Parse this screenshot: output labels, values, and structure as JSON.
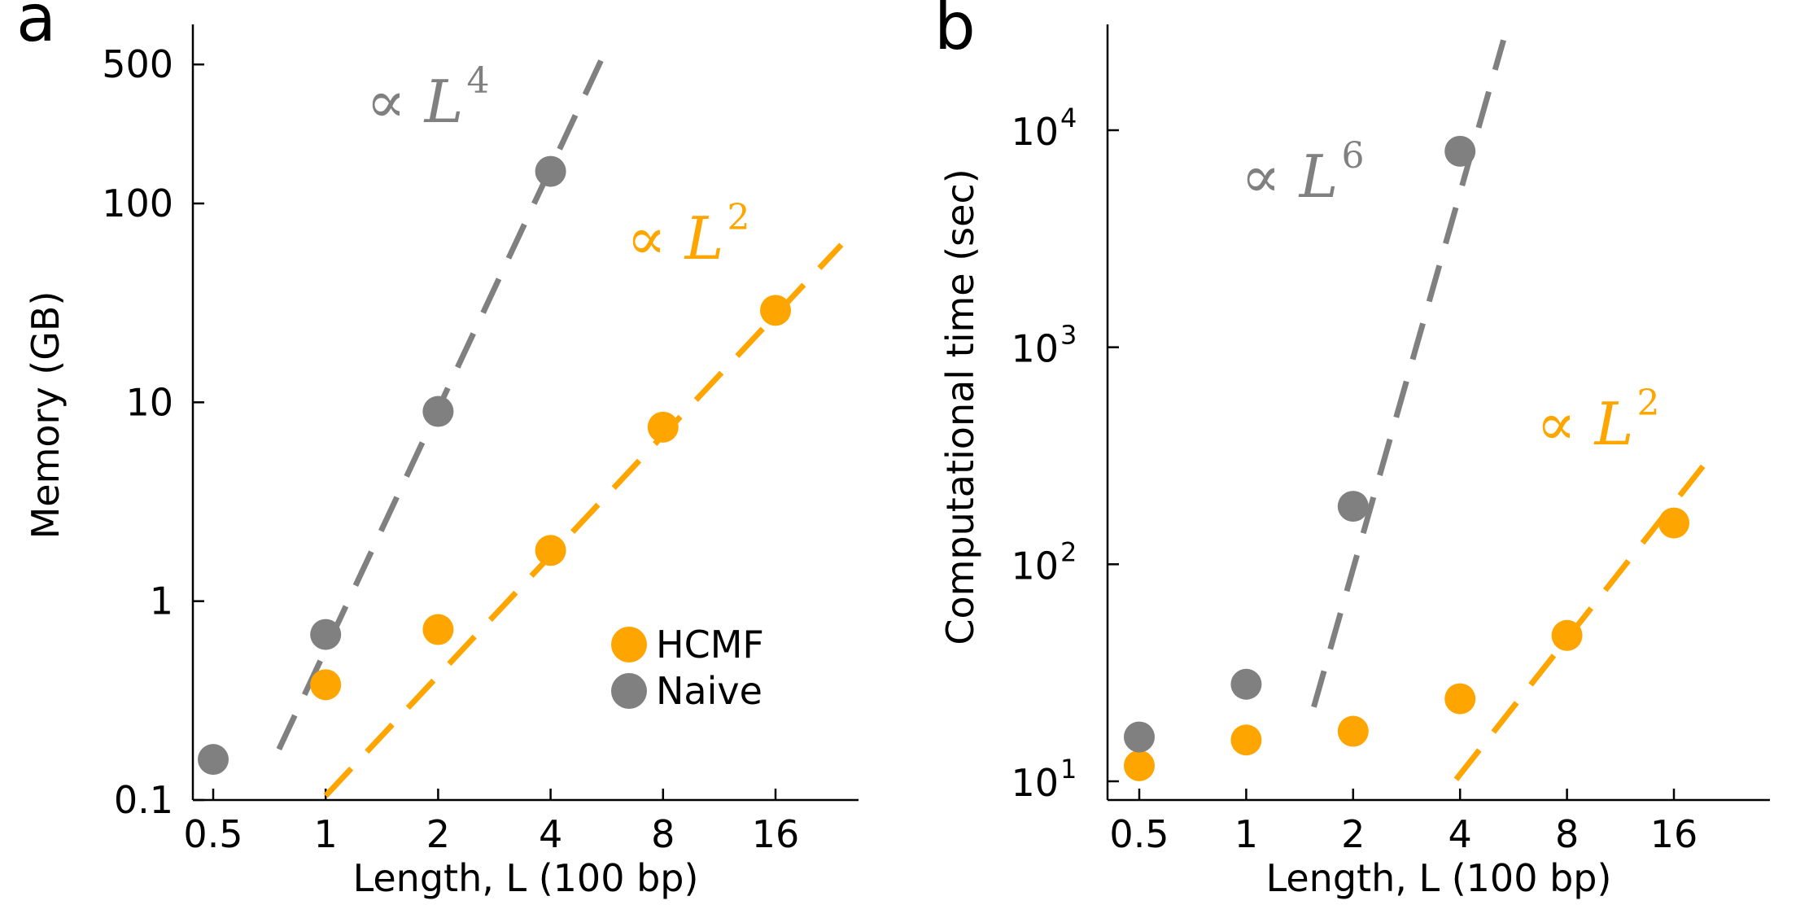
{
  "colors": {
    "hcmf": "#FFA500",
    "naive": "#808080",
    "axis": "#000000"
  },
  "chart_data": [
    {
      "panel": "a",
      "type": "scatter",
      "xscale": "log2",
      "yscale": "log10",
      "xlabel": "Length, L (100 bp)",
      "ylabel": "Memory (GB)",
      "xlim": [
        0.43,
        28
      ],
      "ylim": [
        0.1,
        1000
      ],
      "xticks": [
        0.5,
        1,
        2,
        4,
        8,
        16
      ],
      "xtick_labels": [
        "0.5",
        "1",
        "2",
        "4",
        "8",
        "16"
      ],
      "yticks": [
        0.1,
        1,
        10,
        100,
        500
      ],
      "ytick_labels": [
        "0.1",
        "1",
        "10",
        "100",
        "500"
      ],
      "legend": {
        "placement": "lower-right",
        "entries": [
          "HCMF",
          "Naive"
        ]
      },
      "series": [
        {
          "name": "HCMF",
          "color": "#FFA500",
          "x": [
            1,
            2,
            4,
            8,
            16
          ],
          "y": [
            0.38,
            0.72,
            1.8,
            7.5,
            29
          ]
        },
        {
          "name": "Naive",
          "color": "#808080",
          "x": [
            0.5,
            1,
            2,
            4
          ],
          "y": [
            0.16,
            0.68,
            9,
            145
          ]
        }
      ],
      "fits": [
        {
          "label": "∝ L",
          "exponent": "4",
          "color": "#808080",
          "x": [
            0.75,
            5.5
          ],
          "y": [
            0.18,
            540
          ]
        },
        {
          "label": "∝ L",
          "exponent": "2",
          "color": "#FFA500",
          "x": [
            1,
            24
          ],
          "y": [
            0.105,
            62
          ]
        }
      ]
    },
    {
      "panel": "b",
      "type": "scatter",
      "xscale": "log2",
      "yscale": "log10",
      "xlabel": "Length, L (100 bp)",
      "ylabel": "Computational time (sec)",
      "xlim": [
        0.37,
        28
      ],
      "ylim": [
        8,
        30000
      ],
      "xticks": [
        0.5,
        1,
        2,
        4,
        8,
        16
      ],
      "xtick_labels": [
        "0.5",
        "1",
        "2",
        "4",
        "8",
        "16"
      ],
      "yticks": [
        10,
        100,
        1000,
        10000
      ],
      "ytick_labels": [
        {
          "base": "10",
          "exp": "1"
        },
        {
          "base": "10",
          "exp": "2"
        },
        {
          "base": "10",
          "exp": "3"
        },
        {
          "base": "10",
          "exp": "4"
        }
      ],
      "series": [
        {
          "name": "HCMF",
          "color": "#FFA500",
          "x": [
            0.5,
            1,
            2,
            4,
            8,
            16
          ],
          "y": [
            11.8,
            15.5,
            17,
            24,
            47,
            155
          ]
        },
        {
          "name": "Naive",
          "color": "#808080",
          "x": [
            0.5,
            1,
            2,
            4
          ],
          "y": [
            16,
            28,
            185,
            8000
          ]
        }
      ],
      "fits": [
        {
          "label": "∝ L",
          "exponent": "6",
          "color": "#808080",
          "x": [
            1.55,
            5.3
          ],
          "y": [
            22,
            26000
          ]
        },
        {
          "label": "∝ L",
          "exponent": "2",
          "color": "#FFA500",
          "x": [
            3.9,
            20.5
          ],
          "y": [
            10.2,
            320
          ]
        }
      ]
    }
  ]
}
